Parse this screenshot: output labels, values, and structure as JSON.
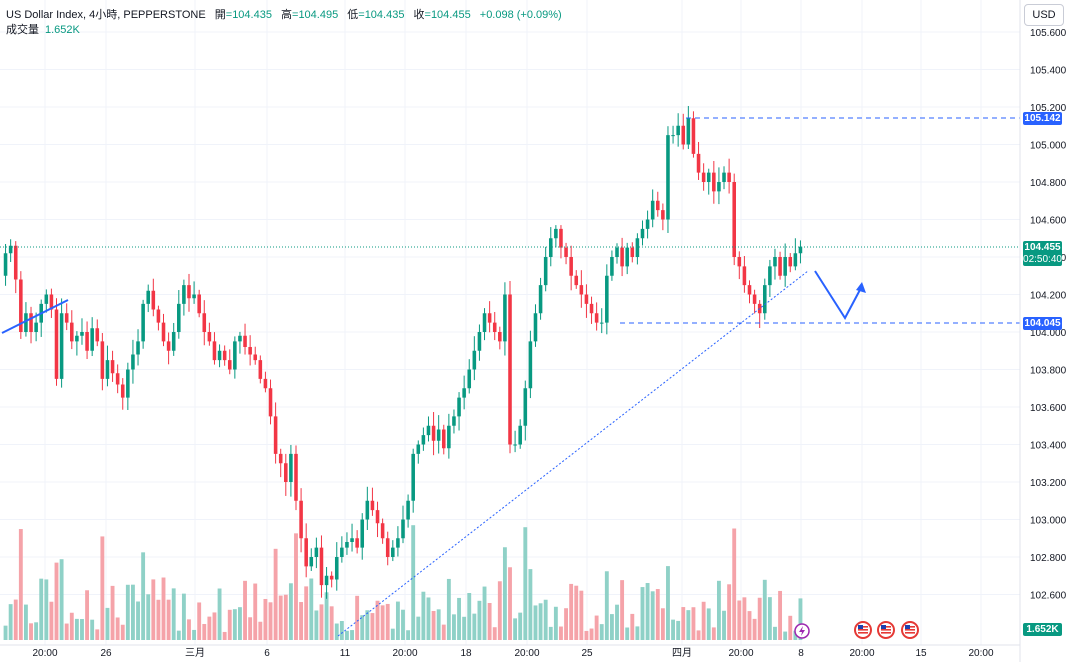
{
  "header": {
    "symbol_line": "US Dollar Index, 4小時, PEPPERSTONE",
    "open_label": "開",
    "open": "=104.435",
    "high_label": "高",
    "high": "=104.495",
    "low_label": "低",
    "low": "=104.435",
    "close_label": "收",
    "close": "=104.455",
    "change": "+0.098 (+0.09%)",
    "volume_label": "成交量",
    "volume": "1.652K"
  },
  "currency_button": "USD",
  "price_tags": {
    "resistance": "105.142",
    "current": "104.455",
    "countdown": "02:50:40",
    "support": "104.045",
    "volume": "1.652K"
  },
  "colors": {
    "up": "#089981",
    "down": "#f23645",
    "vol_up": "#8fd1c7",
    "vol_down": "#f5a3a9",
    "draw": "#2962ff"
  },
  "icons": [
    "lightning-event-icon",
    "us-flag-event-icon",
    "us-flag-event-icon",
    "us-flag-event-icon"
  ],
  "chart_data": {
    "type": "candlestick",
    "y_axis": {
      "ticks": [
        "105.600",
        "105.400",
        "105.200",
        "105.000",
        "104.800",
        "104.600",
        "104.400",
        "104.200",
        "104.000",
        "103.800",
        "103.600",
        "103.400",
        "103.200",
        "103.000",
        "102.800",
        "102.600"
      ],
      "ylim": [
        102.45,
        105.72
      ]
    },
    "x_axis": {
      "ticks": [
        "20:00",
        "26",
        "三月",
        "6",
        "11",
        "20:00",
        "18",
        "20:00",
        "25",
        "四月",
        "20:00",
        "8",
        "20:00",
        "15",
        "20:00"
      ]
    },
    "levels": {
      "resistance": 105.142,
      "support": 104.045,
      "last": 104.455
    },
    "closes": [
      104.42,
      104.46,
      104.28,
      104.0,
      104.1,
      104.0,
      104.05,
      104.15,
      104.2,
      104.12,
      103.75,
      104.1,
      104.05,
      103.95,
      103.98,
      104.0,
      103.9,
      104.02,
      103.95,
      103.75,
      103.85,
      103.78,
      103.72,
      103.65,
      103.8,
      103.88,
      103.95,
      104.15,
      104.22,
      104.12,
      104.05,
      103.95,
      103.9,
      104.0,
      104.15,
      104.25,
      104.18,
      104.2,
      104.1,
      104.0,
      103.95,
      103.85,
      103.9,
      103.85,
      103.8,
      103.95,
      103.98,
      103.92,
      103.88,
      103.85,
      103.75,
      103.7,
      103.55,
      103.35,
      103.3,
      103.2,
      103.35,
      103.1,
      102.9,
      102.75,
      102.8,
      102.85,
      102.65,
      102.7,
      102.68,
      102.8,
      102.85,
      102.88,
      102.9,
      102.85,
      103.0,
      103.1,
      103.05,
      102.98,
      102.9,
      102.8,
      102.85,
      102.9,
      103.0,
      103.1,
      103.35,
      103.4,
      103.45,
      103.5,
      103.42,
      103.48,
      103.38,
      103.5,
      103.55,
      103.65,
      103.7,
      103.8,
      103.9,
      104.0,
      104.1,
      104.05,
      104.0,
      103.95,
      104.2,
      103.4,
      103.4,
      103.5,
      103.7,
      103.95,
      104.1,
      104.25,
      104.4,
      104.5,
      104.55,
      104.45,
      104.4,
      104.3,
      104.25,
      104.2,
      104.15,
      104.1,
      104.05,
      104.05,
      104.3,
      104.4,
      104.45,
      104.35,
      104.45,
      104.4,
      104.5,
      104.55,
      104.6,
      104.7,
      104.65,
      104.6,
      105.05,
      105.05,
      105.1,
      105.0,
      105.14,
      104.95,
      104.85,
      104.8,
      104.85,
      104.75,
      104.8,
      104.85,
      104.8,
      104.4,
      104.35,
      104.25,
      104.2,
      104.15,
      104.1,
      104.25,
      104.35,
      104.4,
      104.3,
      104.4,
      104.35,
      104.42,
      104.455
    ]
  }
}
